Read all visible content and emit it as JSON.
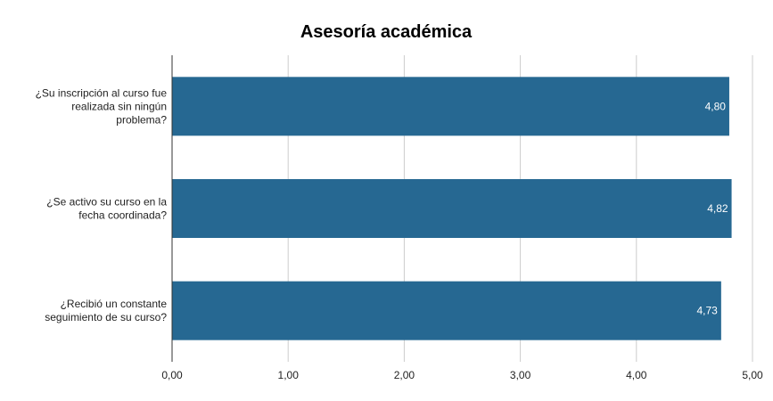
{
  "chart_data": {
    "type": "bar",
    "orientation": "horizontal",
    "title": "Asesoría académica",
    "categories": [
      [
        "¿Su inscripción al curso fue",
        "realizada sin ningún",
        "problema?"
      ],
      [
        "¿Se activo su curso en la",
        "fecha coordinada?"
      ],
      [
        "¿Recibió un constante",
        "seguimiento de su curso?"
      ]
    ],
    "values": [
      4.8,
      4.82,
      4.73
    ],
    "value_labels": [
      "4,80",
      "4,82",
      "4,73"
    ],
    "xlim": [
      0,
      5
    ],
    "x_ticks": [
      0,
      1,
      2,
      3,
      4,
      5
    ],
    "x_tick_labels": [
      "0,00",
      "1,00",
      "2,00",
      "3,00",
      "4,00",
      "5,00"
    ],
    "grid": true,
    "bar_color": "#266892",
    "grid_color": "#cccccc",
    "axis_color": "#333333"
  }
}
